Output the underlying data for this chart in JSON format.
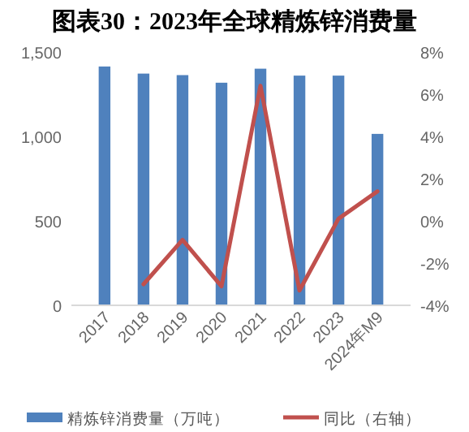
{
  "chart_data": {
    "type": "bar",
    "title": "图表30：2023年全球精炼锌消费量",
    "categories": [
      "2017",
      "2018",
      "2019",
      "2020",
      "2021",
      "2022",
      "2023",
      "2024年M9"
    ],
    "series": [
      {
        "name": "精炼锌消费量（万吨）",
        "color": "#4f81bd",
        "values": [
          1414,
          1372,
          1363,
          1318,
          1401,
          1360,
          1360,
          1015
        ]
      },
      {
        "name": "同比（右轴）",
        "type": "line",
        "axis": "y2",
        "color": "#c0504d",
        "values": [
          null,
          -3.0,
          -0.9,
          -3.1,
          6.4,
          -3.3,
          0.1,
          1.4
        ]
      }
    ],
    "ylim": [
      0,
      1500
    ],
    "yticks": [
      0,
      {
        "value": 500,
        "label": "500"
      },
      {
        "value": 1000,
        "label": "1,000"
      },
      {
        "value": 1500,
        "label": "1,500"
      }
    ],
    "y2lim": [
      -4,
      8
    ],
    "y2ticks": [
      {
        "value": -4,
        "label": "-4%"
      },
      {
        "value": -2,
        "label": "-2%"
      },
      {
        "value": 0,
        "label": "0%"
      },
      {
        "value": 2,
        "label": "2%"
      },
      {
        "value": 4,
        "label": "4%"
      },
      {
        "value": 6,
        "label": "6%"
      },
      {
        "value": 8,
        "label": "8%"
      }
    ],
    "grid": false,
    "legend": "bottom",
    "line_style": "solid",
    "marker": "none"
  }
}
